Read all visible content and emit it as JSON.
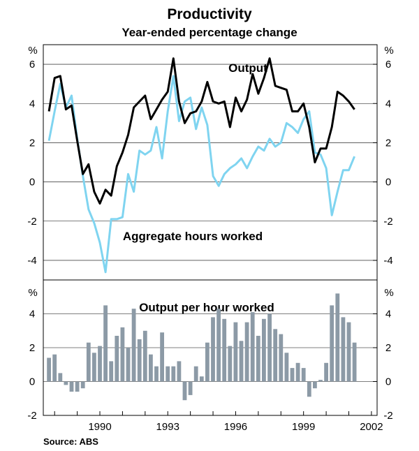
{
  "chart_data": [
    {
      "type": "line",
      "title": "Productivity",
      "subtitle": "Year-ended percentage change",
      "unit_left": "%",
      "unit_right": "%",
      "ylim": [
        -5,
        7
      ],
      "yticks": [
        6,
        4,
        2,
        0,
        -2,
        -4
      ],
      "ytick_labels": [
        "6",
        "4",
        "2",
        "0",
        "-2",
        "-4"
      ],
      "x_start": 1988.25,
      "x_step": 0.25,
      "series": [
        {
          "name": "Output",
          "label": "Output",
          "color": "#000000",
          "values": [
            3.6,
            5.3,
            5.4,
            3.7,
            3.9,
            2.1,
            0.4,
            0.9,
            -0.5,
            -1.1,
            -0.4,
            -0.7,
            0.8,
            1.5,
            2.4,
            3.8,
            4.1,
            4.4,
            3.2,
            3.7,
            4.2,
            4.6,
            6.3,
            4.1,
            3.0,
            3.5,
            3.6,
            4.1,
            5.1,
            4.1,
            4.0,
            4.1,
            2.8,
            4.3,
            3.6,
            4.2,
            5.5,
            4.5,
            5.3,
            6.3,
            4.9,
            4.8,
            4.7,
            3.6,
            3.6,
            4.0,
            2.8,
            1.0,
            1.7,
            1.7,
            2.8,
            4.6,
            4.4,
            4.1,
            3.7
          ]
        },
        {
          "name": "Aggregate hours worked",
          "label": "Aggregate hours worked",
          "color": "#7fd4f0",
          "values": [
            2.1,
            3.6,
            5.0,
            3.8,
            4.4,
            2.2,
            0.3,
            -1.4,
            -2.1,
            -3.1,
            -4.6,
            -1.9,
            -1.9,
            -1.8,
            0.4,
            -0.5,
            1.6,
            1.4,
            1.6,
            2.8,
            1.2,
            3.6,
            5.4,
            3.1,
            4.1,
            4.3,
            2.7,
            3.8,
            2.9,
            0.3,
            -0.2,
            0.4,
            0.7,
            0.9,
            1.2,
            0.7,
            1.3,
            1.8,
            1.6,
            2.2,
            1.8,
            2.0,
            3.0,
            2.8,
            2.5,
            3.2,
            3.6,
            1.5,
            1.4,
            0.7,
            -1.7,
            -0.5,
            0.6,
            0.6,
            1.3
          ]
        }
      ]
    },
    {
      "type": "bar",
      "title": "Output per hour worked",
      "unit_left": "%",
      "unit_right": "%",
      "ylim": [
        -2,
        6
      ],
      "yticks": [
        4,
        2,
        0,
        -2
      ],
      "ytick_labels": [
        "4",
        "2",
        "0",
        "-2"
      ],
      "x_start": 1988.25,
      "x_step": 0.25,
      "color": "#8c9aa6",
      "values": [
        1.4,
        1.6,
        0.5,
        -0.2,
        -0.6,
        -0.6,
        -0.4,
        2.3,
        1.7,
        2.1,
        4.5,
        1.2,
        2.7,
        3.2,
        2.0,
        4.3,
        2.5,
        3.0,
        1.6,
        0.9,
        2.9,
        0.9,
        0.9,
        1.2,
        -1.1,
        -0.8,
        0.9,
        0.3,
        2.3,
        3.8,
        4.3,
        3.7,
        2.1,
        3.5,
        2.4,
        3.5,
        4.1,
        2.7,
        3.7,
        4.0,
        3.1,
        2.8,
        1.7,
        0.8,
        1.1,
        0.8,
        -0.9,
        -0.4,
        0.1,
        1.1,
        4.5,
        5.2,
        3.8,
        3.5,
        2.3
      ]
    }
  ],
  "x_axis": {
    "ticks": [
      1990,
      1993,
      1996,
      1999,
      2002
    ],
    "labels": [
      "1990",
      "1993",
      "1996",
      "1999",
      "2002"
    ]
  },
  "source": "Source: ABS"
}
